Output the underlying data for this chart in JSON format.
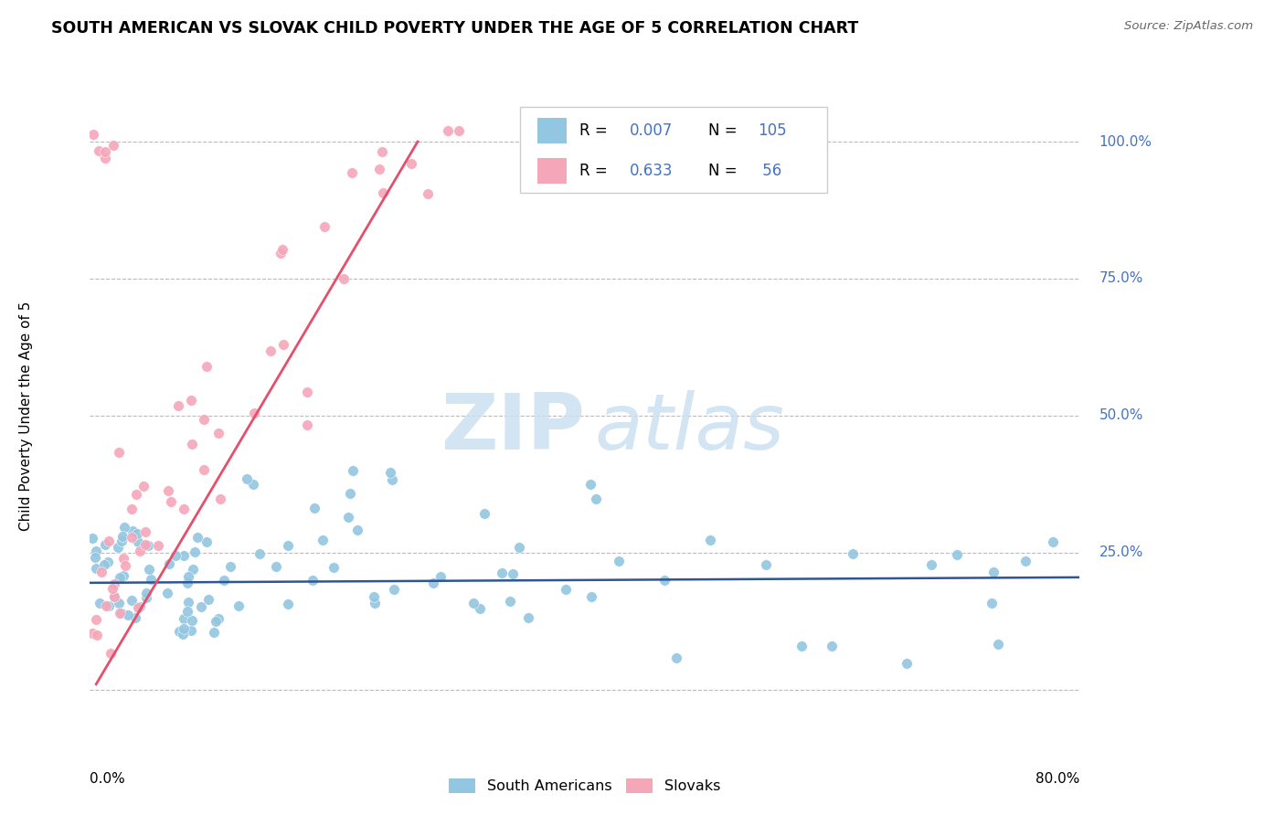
{
  "title": "SOUTH AMERICAN VS SLOVAK CHILD POVERTY UNDER THE AGE OF 5 CORRELATION CHART",
  "source": "Source: ZipAtlas.com",
  "ylabel": "Child Poverty Under the Age of 5",
  "ytick_vals": [
    0.0,
    0.25,
    0.5,
    0.75,
    1.0
  ],
  "ytick_labels": [
    "",
    "25.0%",
    "50.0%",
    "75.0%",
    "100.0%"
  ],
  "legend_label1": "South Americans",
  "legend_label2": "Slovaks",
  "color_blue": "#93c6e0",
  "color_pink": "#f4a7b9",
  "color_blue_text": "#4472c4",
  "color_pink_line": "#e84e6a",
  "color_blue_line": "#2f5597",
  "grid_color": "#bbbbbb",
  "background": "#ffffff",
  "xmin": 0.0,
  "xmax": 0.8,
  "ymin": -0.08,
  "ymax": 1.08,
  "blue_line_y": 0.195,
  "pink_line_x0": 0.005,
  "pink_line_y0": 0.01,
  "pink_line_x1": 0.265,
  "pink_line_y1": 1.0
}
